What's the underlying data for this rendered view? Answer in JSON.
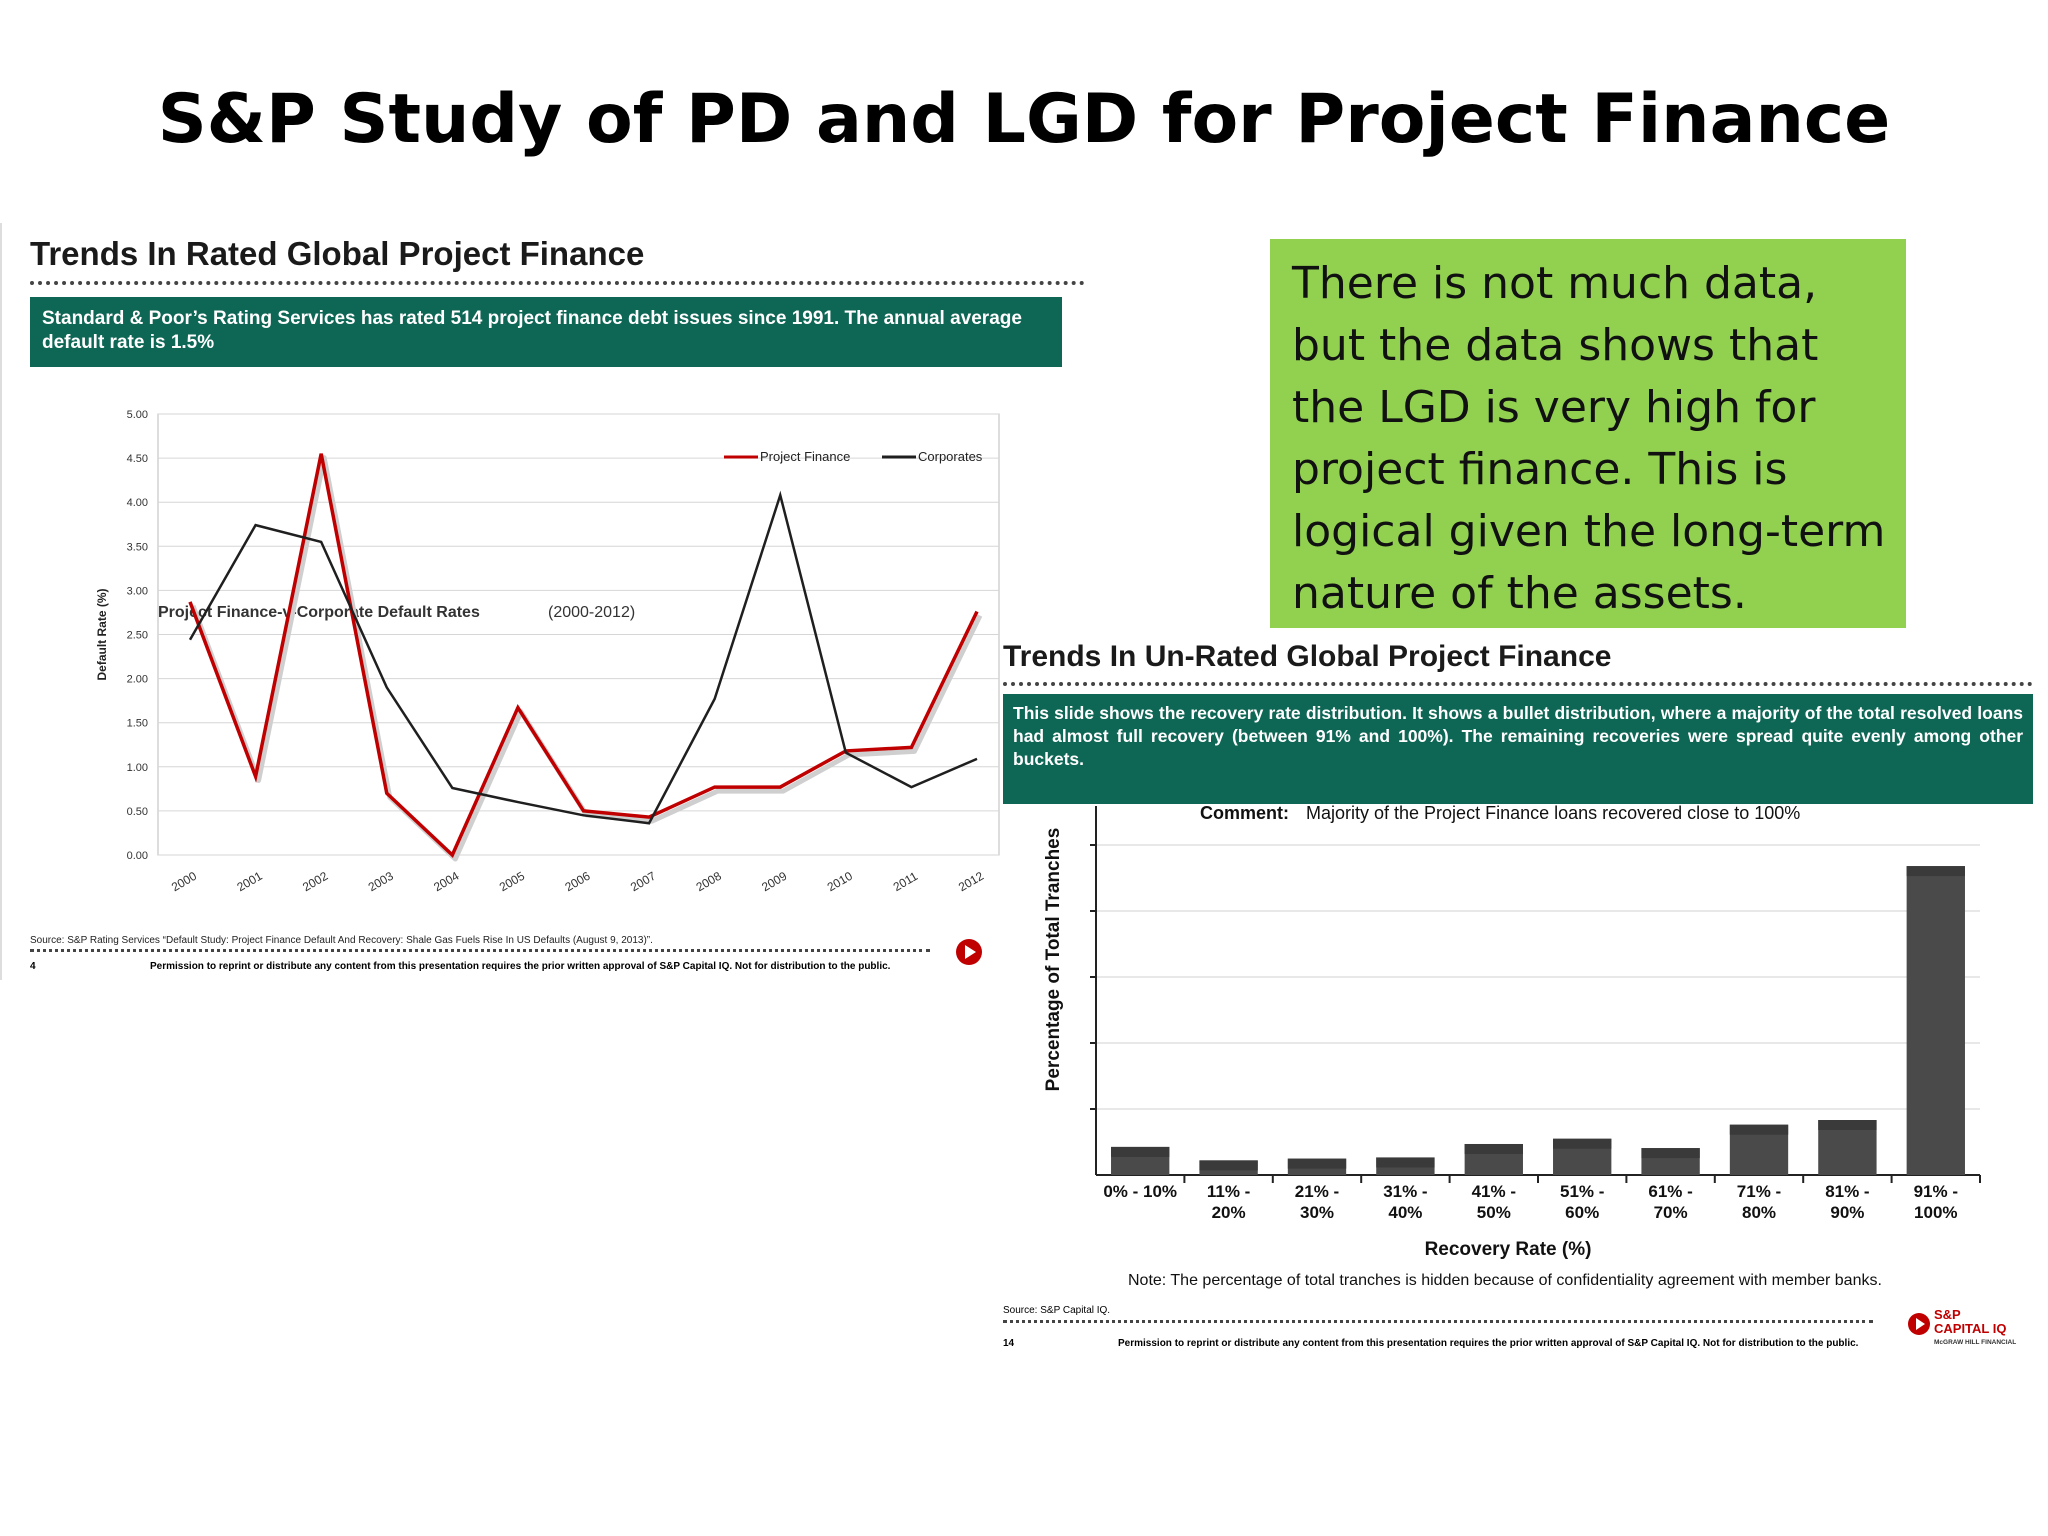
{
  "slide": {
    "title": "S&P Study of PD and LGD for Project Finance",
    "note": "There is not much data, but the data shows that the LGD is very high for project finance. This is logical given the long-term nature of the assets."
  },
  "left_panel": {
    "heading": "Trends In Rated Global Project Finance",
    "banner": "Standard & Poor’s Rating Services has rated 514 project finance debt issues since 1991. The annual average default rate  is 1.5%",
    "chart_title": "Project Finance-v-Corporate Default Rates",
    "chart_title_years": "(2000-2012)",
    "source": "Source: S&P Rating Services “Default Study: Project Finance Default And Recovery: Shale Gas Fuels Rise In US Defaults (August 9, 2013)”.",
    "page_number": "4",
    "permission": "Permission to reprint or distribute any content from this presentation requires the prior written approval of S&P Capital IQ. Not for distribution to the public."
  },
  "right_panel": {
    "heading": "Trends In Un-Rated Global Project Finance",
    "banner": "This slide shows the recovery rate distribution. It shows a bullet distribution, where a majority of the total resolved loans had almost full recovery (between 91% and 100%). The remaining recoveries were spread quite evenly among other buckets.",
    "comment_label": "Comment:",
    "comment_text": "Majority of the Project Finance loans recovered close to 100%",
    "note": "Note: The percentage of total tranches is hidden because of confidentiality agreement with member banks.",
    "source": "Source: S&P Capital IQ.",
    "page_number": "14",
    "permission": "Permission to reprint or distribute any content from this presentation requires the prior written approval of S&P Capital IQ. Not for distribution to the public.",
    "logo_line1": "S&P",
    "logo_line2": "CAPITAL IQ",
    "logo_line3": "McGRAW HILL FINANCIAL"
  },
  "colors": {
    "teal": "#0e6655",
    "note_green": "#92d050",
    "project_finance": "#c00000",
    "corporates": "#1f1f1f",
    "bar": "#4a4a4a"
  },
  "chart_data": [
    {
      "type": "line",
      "title": "Project Finance-v-Corporate Default Rates (2000-2012)",
      "xlabel": "",
      "ylabel": "Default Rate (%)",
      "x": [
        "2000",
        "2001",
        "2002",
        "2003",
        "2004",
        "2005",
        "2006",
        "2007",
        "2008",
        "2009",
        "2010",
        "2011",
        "2012"
      ],
      "yticks": [
        "0.00",
        "0.50",
        "1.00",
        "1.50",
        "2.00",
        "2.50",
        "3.00",
        "3.50",
        "4.00",
        "4.50",
        "5.00"
      ],
      "ylim": [
        0,
        5
      ],
      "legend_position": "top-right",
      "grid": true,
      "series": [
        {
          "name": "Project Finance",
          "color": "#c00000",
          "values": [
            2.87,
            0.89,
            4.55,
            0.7,
            0.0,
            1.67,
            0.5,
            0.43,
            0.77,
            0.77,
            1.18,
            1.22,
            2.76
          ]
        },
        {
          "name": "Corporates",
          "color": "#1f1f1f",
          "values": [
            2.44,
            3.74,
            3.55,
            1.9,
            0.76,
            0.6,
            0.45,
            0.36,
            1.77,
            4.08,
            1.16,
            0.77,
            1.09
          ]
        }
      ]
    },
    {
      "type": "bar",
      "title": "",
      "xlabel": "Recovery Rate (%)",
      "ylabel": "Percentage of Total Tranches",
      "categories": [
        "0% - 10%",
        "11% - 20%",
        "21% - 30%",
        "31% - 40%",
        "41% - 50%",
        "51% - 60%",
        "61% - 70%",
        "71% - 80%",
        "81% - 90%",
        "91% - 100%"
      ],
      "category_lines": [
        [
          "0% - 10%"
        ],
        [
          "11% -",
          "20%"
        ],
        [
          "21% -",
          "30%"
        ],
        [
          "31% -",
          "40%"
        ],
        [
          "41% -",
          "50%"
        ],
        [
          "51% -",
          "60%"
        ],
        [
          "61% -",
          "70%"
        ],
        [
          "71% -",
          "80%"
        ],
        [
          "81% -",
          "90%"
        ],
        [
          "91% -",
          "100%"
        ]
      ],
      "values": [
        4.8,
        2.5,
        2.8,
        3.0,
        5.3,
        6.2,
        4.6,
        8.6,
        9.4,
        52.8
      ],
      "ylim": [
        0,
        60
      ],
      "yticks_hidden": true,
      "grid": true
    }
  ]
}
